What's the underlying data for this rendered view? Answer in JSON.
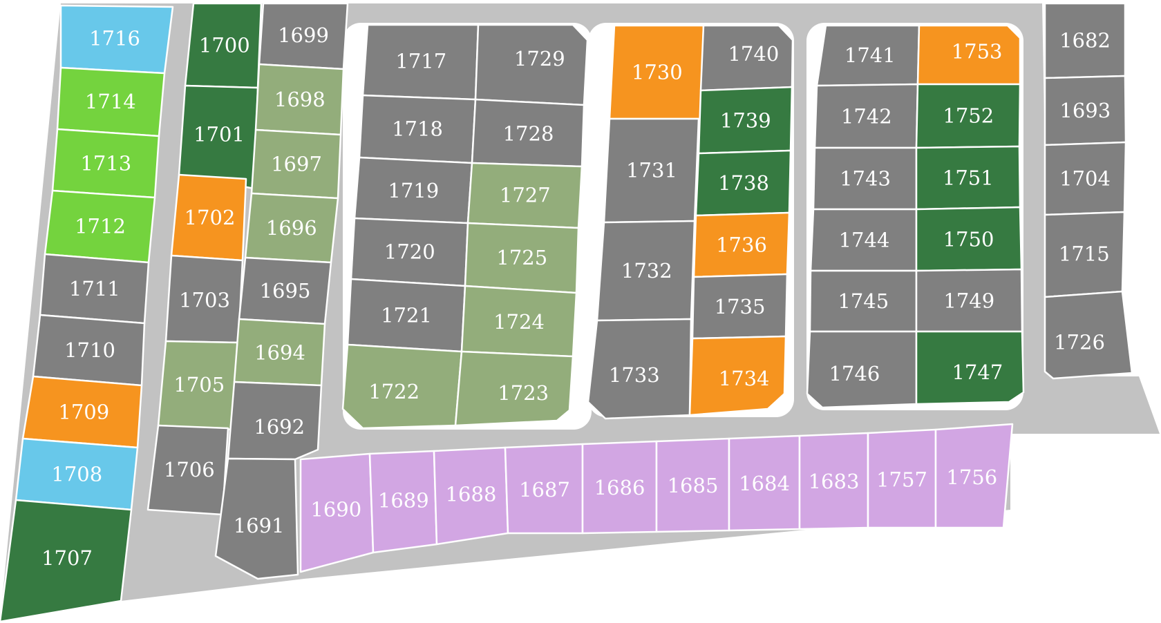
{
  "status_legend": {
    "gray": "#808080",
    "light_blue": "#68c8ea",
    "lime": "#74d33e",
    "dark_green": "#367a41",
    "sage": "#93ad7b",
    "orange": "#f6941f",
    "lavender": "#d2a6e3",
    "road": "#c2c2c2"
  },
  "lots": [
    {
      "id": "1716",
      "color": "light_blue"
    },
    {
      "id": "1714",
      "color": "lime"
    },
    {
      "id": "1713",
      "color": "lime"
    },
    {
      "id": "1712",
      "color": "lime"
    },
    {
      "id": "1711",
      "color": "gray"
    },
    {
      "id": "1710",
      "color": "gray"
    },
    {
      "id": "1709",
      "color": "orange"
    },
    {
      "id": "1708",
      "color": "light_blue"
    },
    {
      "id": "1707",
      "color": "dark_green"
    },
    {
      "id": "1700",
      "color": "dark_green"
    },
    {
      "id": "1701",
      "color": "dark_green"
    },
    {
      "id": "1702",
      "color": "orange"
    },
    {
      "id": "1703",
      "color": "gray"
    },
    {
      "id": "1705",
      "color": "sage"
    },
    {
      "id": "1706",
      "color": "gray"
    },
    {
      "id": "1699",
      "color": "gray"
    },
    {
      "id": "1698",
      "color": "sage"
    },
    {
      "id": "1697",
      "color": "sage"
    },
    {
      "id": "1696",
      "color": "sage"
    },
    {
      "id": "1695",
      "color": "gray"
    },
    {
      "id": "1694",
      "color": "sage"
    },
    {
      "id": "1692",
      "color": "gray"
    },
    {
      "id": "1691",
      "color": "gray"
    },
    {
      "id": "1717",
      "color": "gray"
    },
    {
      "id": "1729",
      "color": "gray"
    },
    {
      "id": "1718",
      "color": "gray"
    },
    {
      "id": "1728",
      "color": "gray"
    },
    {
      "id": "1719",
      "color": "gray"
    },
    {
      "id": "1727",
      "color": "sage"
    },
    {
      "id": "1720",
      "color": "gray"
    },
    {
      "id": "1725",
      "color": "sage"
    },
    {
      "id": "1721",
      "color": "gray"
    },
    {
      "id": "1724",
      "color": "sage"
    },
    {
      "id": "1722",
      "color": "sage"
    },
    {
      "id": "1723",
      "color": "sage"
    },
    {
      "id": "1730",
      "color": "orange"
    },
    {
      "id": "1740",
      "color": "gray"
    },
    {
      "id": "1739",
      "color": "dark_green"
    },
    {
      "id": "1738",
      "color": "dark_green"
    },
    {
      "id": "1731",
      "color": "gray"
    },
    {
      "id": "1736",
      "color": "orange"
    },
    {
      "id": "1735",
      "color": "gray"
    },
    {
      "id": "1732",
      "color": "gray"
    },
    {
      "id": "1733",
      "color": "gray"
    },
    {
      "id": "1734",
      "color": "orange"
    },
    {
      "id": "1741",
      "color": "gray"
    },
    {
      "id": "1753",
      "color": "orange"
    },
    {
      "id": "1742",
      "color": "gray"
    },
    {
      "id": "1752",
      "color": "dark_green"
    },
    {
      "id": "1743",
      "color": "gray"
    },
    {
      "id": "1751",
      "color": "dark_green"
    },
    {
      "id": "1744",
      "color": "gray"
    },
    {
      "id": "1750",
      "color": "dark_green"
    },
    {
      "id": "1745",
      "color": "gray"
    },
    {
      "id": "1749",
      "color": "gray"
    },
    {
      "id": "1746",
      "color": "gray"
    },
    {
      "id": "1747",
      "color": "dark_green"
    },
    {
      "id": "1682",
      "color": "gray"
    },
    {
      "id": "1693",
      "color": "gray"
    },
    {
      "id": "1704",
      "color": "gray"
    },
    {
      "id": "1715",
      "color": "gray"
    },
    {
      "id": "1726",
      "color": "gray"
    },
    {
      "id": "1690",
      "color": "lavender"
    },
    {
      "id": "1689",
      "color": "lavender"
    },
    {
      "id": "1688",
      "color": "lavender"
    },
    {
      "id": "1687",
      "color": "lavender"
    },
    {
      "id": "1686",
      "color": "lavender"
    },
    {
      "id": "1685",
      "color": "lavender"
    },
    {
      "id": "1684",
      "color": "lavender"
    },
    {
      "id": "1683",
      "color": "lavender"
    },
    {
      "id": "1757",
      "color": "lavender"
    },
    {
      "id": "1756",
      "color": "lavender"
    }
  ]
}
